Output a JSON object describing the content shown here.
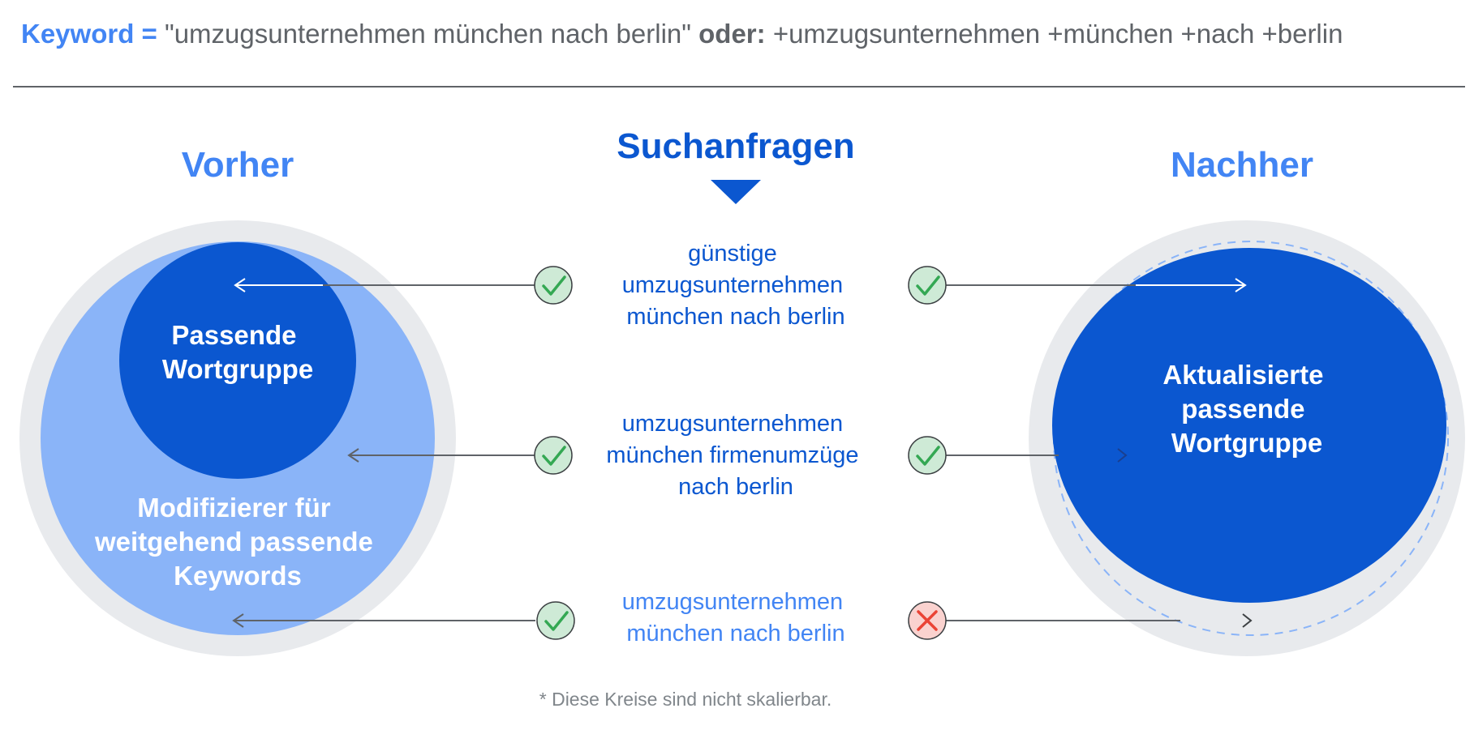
{
  "header": {
    "keyword_label": "Keyword =",
    "keyword_phrase": "\"umzugsunternehmen münchen nach berlin\"",
    "or_label": "oder:",
    "keyword_bmm": "+umzugsunternehmen +münchen +nach +berlin"
  },
  "diagram": {
    "center_title": "Suchanfragen",
    "before_title": "Vorher",
    "after_title": "Nachher",
    "before_inner_circle": [
      "Passende",
      "Wortgruppe"
    ],
    "before_outer_circle": [
      "Modifizierer für",
      "weitgehend passende",
      "Keywords"
    ],
    "after_circle": [
      "Aktualisierte",
      "passende",
      "Wortgruppe"
    ],
    "queries": [
      {
        "lines": [
          "günstige",
          "umzugsunternehmen",
          "münchen nach berlin"
        ],
        "before_match": "check",
        "after_match": "check"
      },
      {
        "lines": [
          "umzugsunternehmen",
          "münchen firmenumzüge",
          "nach berlin"
        ],
        "before_match": "check",
        "after_match": "check"
      },
      {
        "lines": [
          "umzugsunternehmen",
          "münchen nach berlin"
        ],
        "before_match": "check",
        "after_match": "cross"
      }
    ]
  },
  "footnote": "* Diese Kreise sind nicht skalierbar.",
  "colors": {
    "dark_blue": "#0b57d0",
    "light_blue": "#8ab4f8",
    "mid_blue": "#4285f4",
    "ring_gray": "#e8eaed",
    "check_bg": "#ceead6",
    "check_stroke": "#34a853",
    "cross_bg": "#fad2cf",
    "cross_stroke": "#ea4335",
    "line_gray": "#5f6368"
  }
}
